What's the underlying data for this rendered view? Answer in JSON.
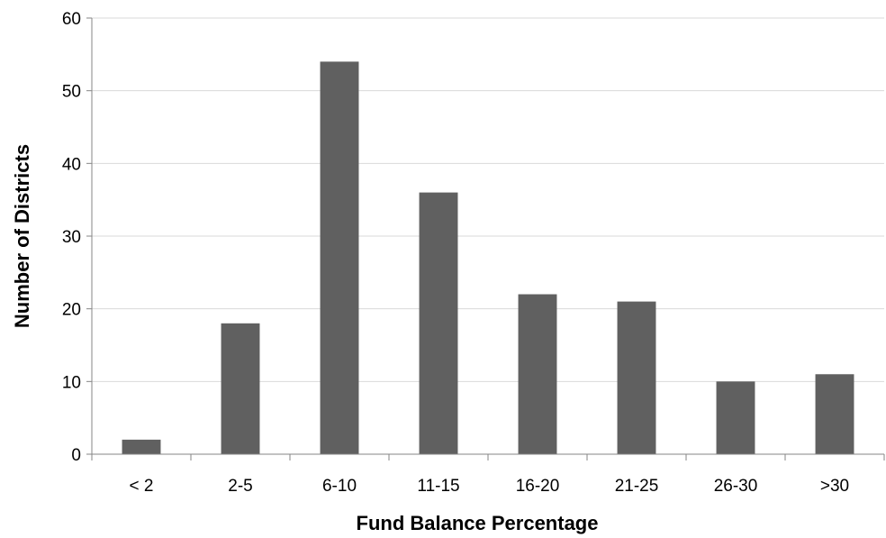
{
  "chart_data": {
    "type": "bar",
    "title": "",
    "xlabel": "Fund Balance Percentage",
    "ylabel": "Number of Districts",
    "categories": [
      "< 2",
      "2-5",
      "6-10",
      "11-15",
      "16-20",
      "21-25",
      "26-30",
      ">30"
    ],
    "values": [
      2,
      18,
      54,
      36,
      22,
      21,
      10,
      11
    ],
    "ylim": [
      0,
      60
    ],
    "yticks": [
      0,
      10,
      20,
      30,
      40,
      50,
      60
    ],
    "grid": true,
    "legend": "none",
    "bar_color": "#606060",
    "grid_color": "#d9d9d9",
    "axis_color": "#868686"
  }
}
